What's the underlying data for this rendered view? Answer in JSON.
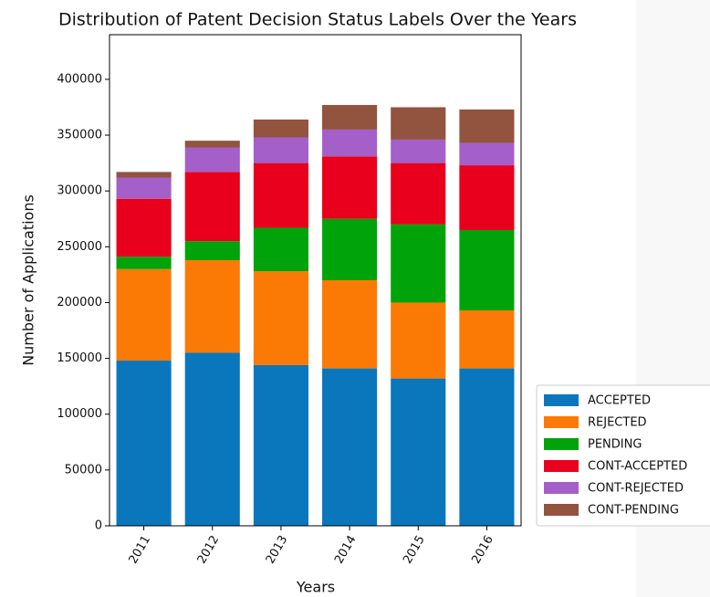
{
  "chart_data": {
    "type": "stacked_bar",
    "title": "Distribution of Patent Decision Status Labels Over the Years",
    "xlabel": "Years",
    "ylabel": "Number of Applications",
    "categories": [
      "2011",
      "2012",
      "2013",
      "2014",
      "2015",
      "2016"
    ],
    "series": [
      {
        "name": "ACCEPTED",
        "color": "#0a77bd",
        "values": [
          148000,
          155000,
          144000,
          141000,
          132000,
          141000
        ]
      },
      {
        "name": "REJECTED",
        "color": "#fb7a05",
        "values": [
          82000,
          83000,
          84000,
          79000,
          68000,
          52000
        ]
      },
      {
        "name": "PENDING",
        "color": "#00a30a",
        "values": [
          11000,
          17000,
          39000,
          55000,
          70000,
          72000
        ]
      },
      {
        "name": "CONT-ACCEPTED",
        "color": "#e8001c",
        "values": [
          52000,
          62000,
          58000,
          56000,
          55000,
          58000
        ]
      },
      {
        "name": "CONT-REJECTED",
        "color": "#a45fc9",
        "values": [
          19000,
          22000,
          23000,
          24000,
          21000,
          20000
        ]
      },
      {
        "name": "CONT-PENDING",
        "color": "#92533f",
        "values": [
          5000,
          6000,
          16000,
          22000,
          29000,
          30000
        ]
      }
    ],
    "ylim": [
      0,
      440000
    ],
    "yticks": [
      0,
      50000,
      100000,
      150000,
      200000,
      250000,
      300000,
      350000,
      400000
    ],
    "grid": false,
    "legend": "lower right"
  }
}
